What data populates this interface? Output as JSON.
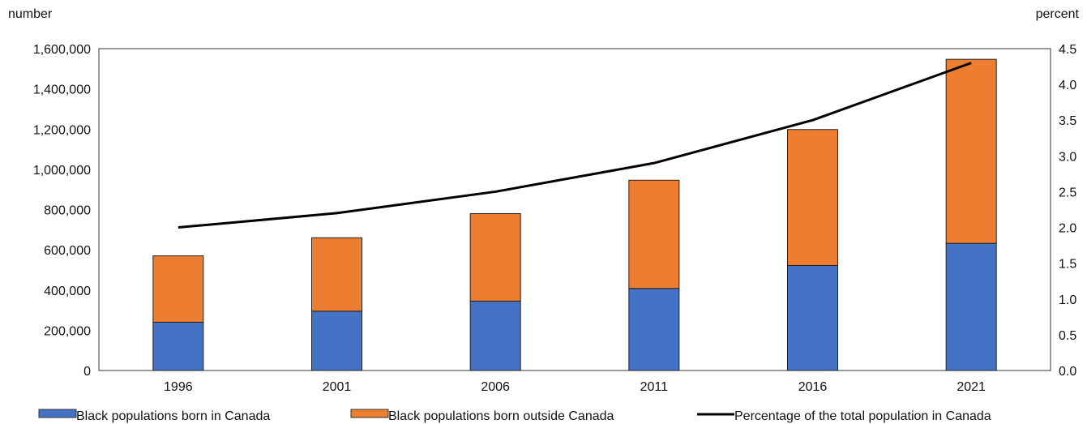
{
  "chart_data": {
    "type": "bar",
    "categories": [
      "1996",
      "2001",
      "2006",
      "2011",
      "2016",
      "2021"
    ],
    "series": [
      {
        "name": "Black populations born in Canada",
        "kind": "stacked-bar",
        "color": "#4472C4",
        "values": [
          240000,
          295000,
          345000,
          408000,
          522000,
          632000
        ]
      },
      {
        "name": "Black populations born outside Canada",
        "kind": "stacked-bar",
        "color": "#ED7D31",
        "values": [
          330000,
          365000,
          435000,
          538000,
          676000,
          915000
        ]
      },
      {
        "name": "Percentage of the total population in Canada",
        "kind": "line",
        "axis": "right",
        "color": "#000000",
        "values": [
          2.0,
          2.2,
          2.5,
          2.9,
          3.5,
          4.3
        ]
      }
    ],
    "left_axis": {
      "label": "number",
      "min": 0,
      "max": 1600000,
      "ticks": [
        0,
        200000,
        400000,
        600000,
        800000,
        1000000,
        1200000,
        1400000,
        1600000
      ],
      "tick_labels": [
        "0",
        "200,000",
        "400,000",
        "600,000",
        "800,000",
        "1,000,000",
        "1,200,000",
        "1,400,000",
        "1,600,000"
      ]
    },
    "right_axis": {
      "label": "percent",
      "min": 0,
      "max": 4.5,
      "ticks": [
        0,
        0.5,
        1,
        1.5,
        2,
        2.5,
        3,
        3.5,
        4,
        4.5
      ],
      "tick_labels": [
        "0.0",
        "0.5",
        "1.0",
        "1.5",
        "2.0",
        "2.5",
        "3.0",
        "3.5",
        "4.0",
        "4.5"
      ]
    },
    "grid": false,
    "legend_position": "bottom"
  }
}
